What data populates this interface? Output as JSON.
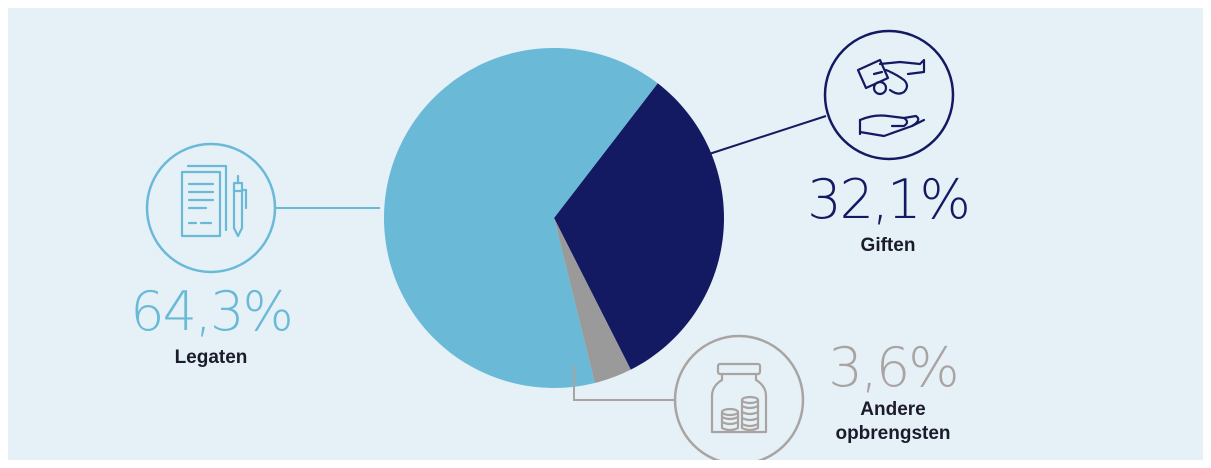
{
  "colors": {
    "background": "#e5f1f6",
    "legaten": "#69b9d7",
    "giften": "#141a62",
    "andere": "#9a9a9a",
    "andere_text": "#a9a4a2"
  },
  "chart_data": {
    "type": "pie",
    "slices": [
      {
        "label": "Legaten",
        "value": 64.3,
        "display": "64,3%",
        "color": "#69b9d7",
        "icon": "document-pen-icon"
      },
      {
        "label": "Giften",
        "value": 32.1,
        "display": "32,1%",
        "color": "#141a62",
        "icon": "hand-giving-money-icon"
      },
      {
        "label": "Andere opbrengsten",
        "value": 3.6,
        "display": "3,6%",
        "color": "#9a9a9a",
        "icon": "coin-jar-icon"
      }
    ]
  },
  "labels": {
    "legaten": {
      "pct": "64,3%",
      "name": "Legaten"
    },
    "giften": {
      "pct": "32,1%",
      "name": "Giften"
    },
    "andere": {
      "pct": "3,6%",
      "name_line1": "Andere",
      "name_line2": "opbrengsten"
    }
  }
}
